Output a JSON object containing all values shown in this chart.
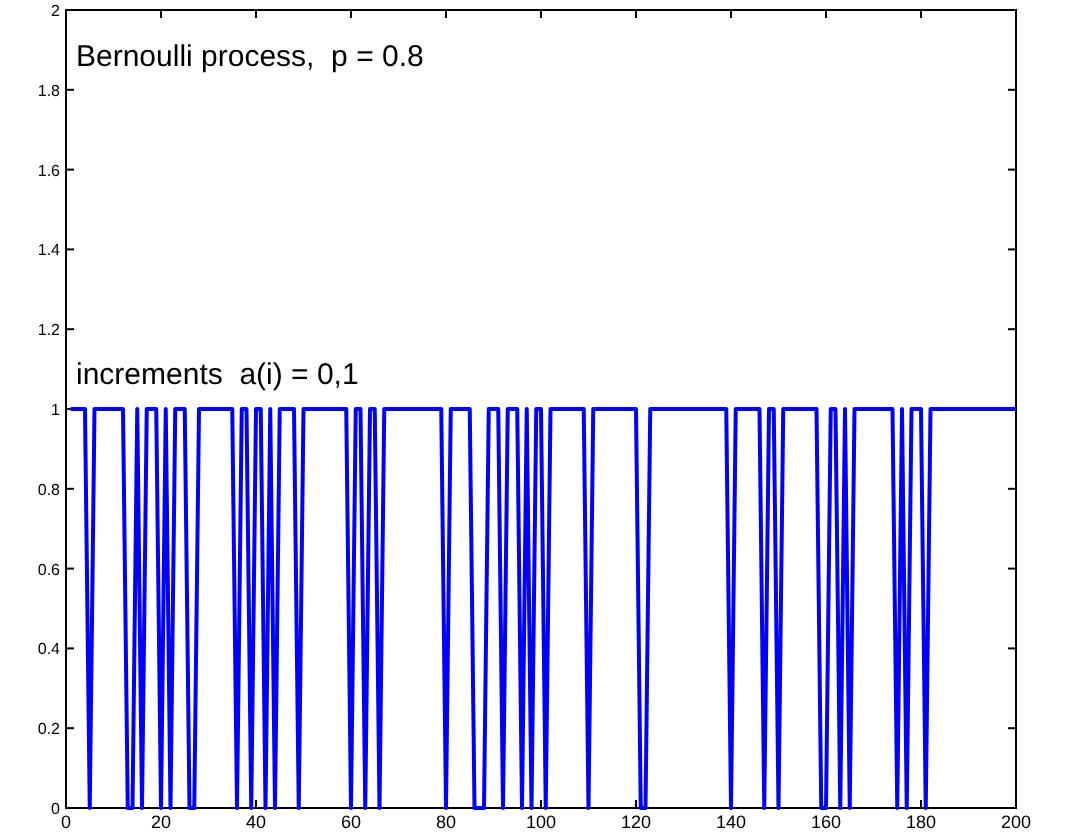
{
  "chart_data": {
    "type": "line",
    "annotations": [
      "Bernoulli process,  p = 0.8",
      "increments  a(i) = 0,1"
    ],
    "x": [
      1,
      2,
      3,
      4,
      5,
      6,
      7,
      8,
      9,
      10,
      11,
      12,
      13,
      14,
      15,
      16,
      17,
      18,
      19,
      20,
      21,
      22,
      23,
      24,
      25,
      26,
      27,
      28,
      29,
      30,
      31,
      32,
      33,
      34,
      35,
      36,
      37,
      38,
      39,
      40,
      41,
      42,
      43,
      44,
      45,
      46,
      47,
      48,
      49,
      50,
      51,
      52,
      53,
      54,
      55,
      56,
      57,
      58,
      59,
      60,
      61,
      62,
      63,
      64,
      65,
      66,
      67,
      68,
      69,
      70,
      71,
      72,
      73,
      74,
      75,
      76,
      77,
      78,
      79,
      80,
      81,
      82,
      83,
      84,
      85,
      86,
      87,
      88,
      89,
      90,
      91,
      92,
      93,
      94,
      95,
      96,
      97,
      98,
      99,
      100,
      101,
      102,
      103,
      104,
      105,
      106,
      107,
      108,
      109,
      110,
      111,
      112,
      113,
      114,
      115,
      116,
      117,
      118,
      119,
      120,
      121,
      122,
      123,
      124,
      125,
      126,
      127,
      128,
      129,
      130,
      131,
      132,
      133,
      134,
      135,
      136,
      137,
      138,
      139,
      140,
      141,
      142,
      143,
      144,
      145,
      146,
      147,
      148,
      149,
      150,
      151,
      152,
      153,
      154,
      155,
      156,
      157,
      158,
      159,
      160,
      161,
      162,
      163,
      164,
      165,
      166,
      167,
      168,
      169,
      170,
      171,
      172,
      173,
      174,
      175,
      176,
      177,
      178,
      179,
      180,
      181,
      182,
      183,
      184,
      185,
      186,
      187,
      188,
      189,
      190,
      191,
      192,
      193,
      194,
      195,
      196,
      197,
      198,
      199,
      200
    ],
    "series": [
      {
        "color": "#0000ff",
        "values": [
          1,
          1,
          1,
          1,
          0,
          1,
          1,
          1,
          1,
          1,
          1,
          1,
          0,
          0,
          1,
          0,
          1,
          1,
          1,
          0,
          1,
          0,
          1,
          1,
          1,
          0,
          0,
          1,
          1,
          1,
          1,
          1,
          1,
          1,
          1,
          0,
          1,
          1,
          0,
          1,
          1,
          0,
          1,
          0,
          1,
          1,
          1,
          1,
          0,
          1,
          1,
          1,
          1,
          1,
          1,
          1,
          1,
          1,
          1,
          0,
          1,
          1,
          0,
          1,
          1,
          0,
          1,
          1,
          1,
          1,
          1,
          1,
          1,
          1,
          1,
          1,
          1,
          1,
          1,
          0,
          1,
          1,
          1,
          1,
          1,
          0,
          0,
          0,
          1,
          1,
          1,
          0,
          1,
          1,
          1,
          0,
          1,
          0,
          1,
          1,
          0,
          1,
          1,
          1,
          1,
          1,
          1,
          1,
          1,
          0,
          1,
          1,
          1,
          1,
          1,
          1,
          1,
          1,
          1,
          1,
          0,
          0,
          1,
          1,
          1,
          1,
          1,
          1,
          1,
          1,
          1,
          1,
          1,
          1,
          1,
          1,
          1,
          1,
          1,
          0,
          1,
          1,
          1,
          1,
          1,
          1,
          0,
          1,
          1,
          0,
          1,
          1,
          1,
          1,
          1,
          1,
          1,
          1,
          0,
          0,
          1,
          1,
          0,
          1,
          0,
          1,
          1,
          1,
          1,
          1,
          1,
          1,
          1,
          1,
          0,
          1,
          0,
          1,
          1,
          1,
          0,
          1,
          1,
          1,
          1,
          1,
          1,
          1,
          1,
          1,
          1,
          1,
          1,
          1,
          1,
          1,
          1,
          1,
          1,
          1
        ]
      }
    ],
    "xlim": [
      0,
      200
    ],
    "xticks": [
      0,
      20,
      40,
      60,
      80,
      100,
      120,
      140,
      160,
      180,
      200
    ],
    "ylim": [
      0,
      2
    ],
    "yticks": [
      0,
      0.2,
      0.4,
      0.6,
      0.8,
      1,
      1.2,
      1.4,
      1.6,
      1.8,
      2
    ],
    "grid": false,
    "marker": "none",
    "line_style": "solid"
  }
}
